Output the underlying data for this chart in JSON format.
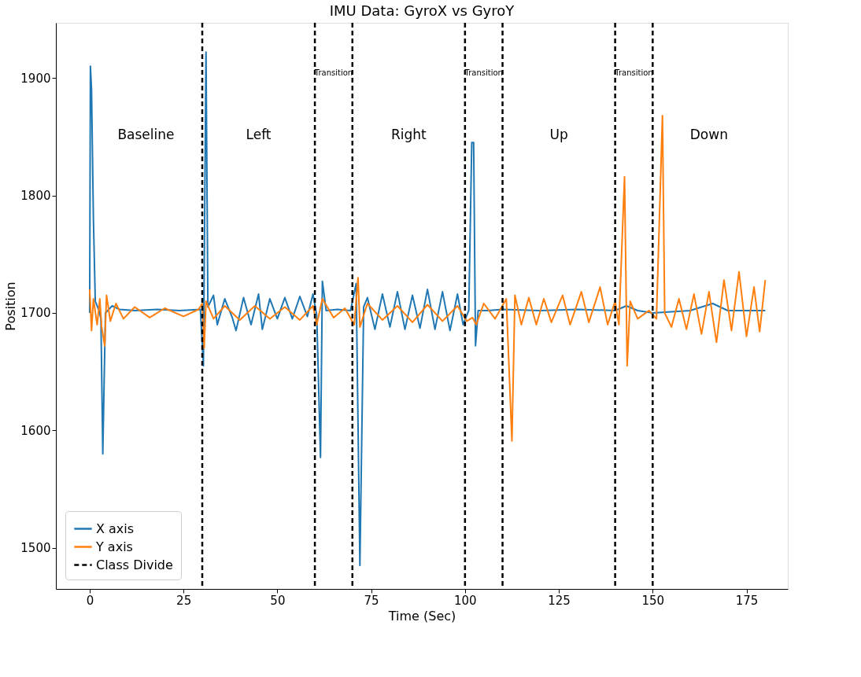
{
  "chart_data": {
    "type": "line",
    "title": "IMU Data: GyroX vs GyroY",
    "xlabel": "Time (Sec)",
    "ylabel": "Position",
    "xlim": [
      -9,
      186
    ],
    "xticks": [
      0,
      25,
      50,
      75,
      100,
      125,
      150,
      175
    ],
    "ylim": [
      1465,
      1947
    ],
    "yticks": [
      1500,
      1600,
      1700,
      1800,
      1900
    ],
    "grid": false,
    "legend": "bottom left",
    "marker": "none",
    "line_style": "solid",
    "series": [
      {
        "name": "X axis",
        "color": "#1f77b4",
        "x": [
          0,
          0.2,
          0.5,
          1,
          1.5,
          2.5,
          3,
          3.5,
          4.2,
          6,
          8,
          12,
          18,
          24,
          29.5,
          30.3,
          31,
          31.5,
          33,
          34,
          36,
          38,
          39,
          41,
          43,
          45,
          46,
          48,
          50,
          52,
          54,
          56,
          58,
          59.5,
          60.5,
          61.5,
          62,
          63,
          66,
          69.5,
          71,
          72,
          73,
          74,
          76,
          78,
          80,
          82,
          84,
          86,
          88,
          90,
          92,
          94,
          96,
          98,
          99.5,
          101,
          101.8,
          102.3,
          102.8,
          103.5,
          106,
          110,
          120,
          130,
          140,
          143,
          146,
          150,
          160,
          166,
          170,
          180
        ],
        "values": [
          1700,
          1910,
          1890,
          1780,
          1710,
          1702,
          1695,
          1580,
          1700,
          1706,
          1703,
          1702,
          1703,
          1702,
          1703,
          1655,
          1922,
          1705,
          1715,
          1690,
          1712,
          1696,
          1685,
          1713,
          1690,
          1716,
          1686,
          1712,
          1695,
          1713,
          1695,
          1714,
          1697,
          1716,
          1698,
          1577,
          1727,
          1702,
          1703,
          1702,
          1725,
          1485,
          1705,
          1713,
          1686,
          1716,
          1688,
          1718,
          1686,
          1715,
          1687,
          1720,
          1686,
          1718,
          1685,
          1716,
          1690,
          1702,
          1845,
          1845,
          1672,
          1702,
          1702,
          1703,
          1702,
          1703,
          1702,
          1706,
          1702,
          1700,
          1702,
          1708,
          1702,
          1702
        ]
      },
      {
        "name": "Y axis",
        "color": "#ff7f0e",
        "x": [
          0,
          0.5,
          1,
          2,
          2.7,
          3.2,
          4,
          4.5,
          5.5,
          7,
          9,
          12,
          16,
          20,
          25,
          29,
          30,
          30.5,
          31,
          33,
          36,
          40,
          44,
          48,
          52,
          56,
          59.5,
          60.5,
          62,
          65,
          68,
          70.5,
          71.5,
          72,
          74,
          78,
          82,
          86,
          90,
          94,
          98,
          100.5,
          102,
          103,
          105,
          108,
          111,
          112.5,
          113.3,
          115,
          117,
          119,
          121,
          123,
          126,
          128,
          131,
          133,
          136,
          138,
          140,
          141,
          142.5,
          143.2,
          144,
          146,
          149,
          151,
          152.6,
          153.2,
          155,
          157,
          159,
          161,
          163,
          165,
          167,
          169,
          171,
          173,
          175,
          177,
          178.5,
          180
        ],
        "values": [
          1720,
          1685,
          1712,
          1690,
          1712,
          1688,
          1672,
          1715,
          1693,
          1708,
          1695,
          1705,
          1696,
          1704,
          1697,
          1703,
          1708,
          1670,
          1710,
          1695,
          1706,
          1694,
          1706,
          1695,
          1705,
          1694,
          1706,
          1690,
          1712,
          1696,
          1704,
          1690,
          1730,
          1688,
          1708,
          1694,
          1706,
          1692,
          1707,
          1693,
          1706,
          1693,
          1696,
          1690,
          1708,
          1695,
          1712,
          1591,
          1715,
          1690,
          1713,
          1690,
          1712,
          1692,
          1715,
          1690,
          1718,
          1692,
          1722,
          1690,
          1710,
          1690,
          1816,
          1655,
          1710,
          1695,
          1702,
          1695,
          1868,
          1700,
          1688,
          1712,
          1686,
          1716,
          1682,
          1718,
          1675,
          1728,
          1685,
          1735,
          1680,
          1722,
          1684,
          1728
        ]
      }
    ],
    "ref_lines": [
      {
        "axis": "x",
        "value": 30,
        "label": "Class Divide",
        "color": "#000000",
        "line_style": "dashed"
      },
      {
        "axis": "x",
        "value": 60,
        "color": "#000000",
        "line_style": "dashed"
      },
      {
        "axis": "x",
        "value": 70,
        "color": "#000000",
        "line_style": "dashed"
      },
      {
        "axis": "x",
        "value": 100,
        "color": "#000000",
        "line_style": "dashed"
      },
      {
        "axis": "x",
        "value": 110,
        "color": "#000000",
        "line_style": "dashed"
      },
      {
        "axis": "x",
        "value": 140,
        "color": "#000000",
        "line_style": "dashed"
      },
      {
        "axis": "x",
        "value": 150,
        "color": "#000000",
        "line_style": "dashed"
      }
    ],
    "annotations": [
      "Baseline",
      "Left",
      "Transition",
      "Right",
      "Transition",
      "Up",
      "Transition",
      "Down"
    ]
  }
}
